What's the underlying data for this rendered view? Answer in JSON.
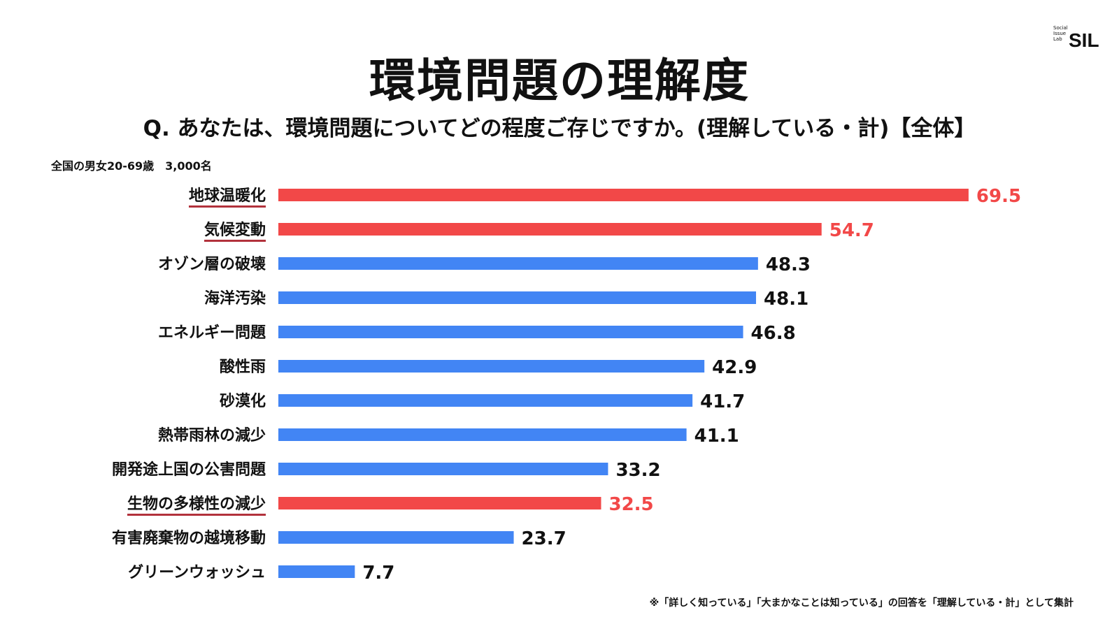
{
  "logo": {
    "small_lines": [
      "Social",
      "Issue",
      "Lab"
    ],
    "big": "SIL"
  },
  "title": "環境問題の理解度",
  "question": "Q. あなたは、環境問題についてどの程度ご存じですか。(理解している・計)【全体】",
  "sample_note": "全国の男女20-69歳　3,000名",
  "footnote": "※「詳しく知っている」「大まかなことは知っている」の回答を「理解している・計」として集計",
  "colors": {
    "highlight": "#f24848",
    "normal": "#4285f4",
    "underline": "#b2323c",
    "text": "#111111"
  },
  "chart_data": {
    "type": "bar",
    "orientation": "horizontal",
    "title": "環境問題の理解度",
    "xlabel": "",
    "ylabel": "",
    "xlim": [
      0,
      100
    ],
    "grid": false,
    "categories": [
      "地球温暖化",
      "気候変動",
      "オゾン層の破壊",
      "海洋汚染",
      "エネルギー問題",
      "酸性雨",
      "砂漠化",
      "熱帯雨林の減少",
      "開発途上国の公害問題",
      "生物の多様性の減少",
      "有害廃棄物の越境移動",
      "グリーンウォッシュ"
    ],
    "values": [
      69.5,
      54.7,
      48.3,
      48.1,
      46.8,
      42.9,
      41.7,
      41.1,
      33.2,
      32.5,
      23.7,
      7.7
    ],
    "value_labels": [
      "69.5",
      "54.7",
      "48.3",
      "48.1",
      "46.8",
      "42.9",
      "41.7",
      "41.1",
      "33.2",
      "32.5",
      "23.7",
      "7.7"
    ],
    "highlighted": [
      true,
      true,
      false,
      false,
      false,
      false,
      false,
      false,
      false,
      true,
      false,
      false
    ]
  }
}
